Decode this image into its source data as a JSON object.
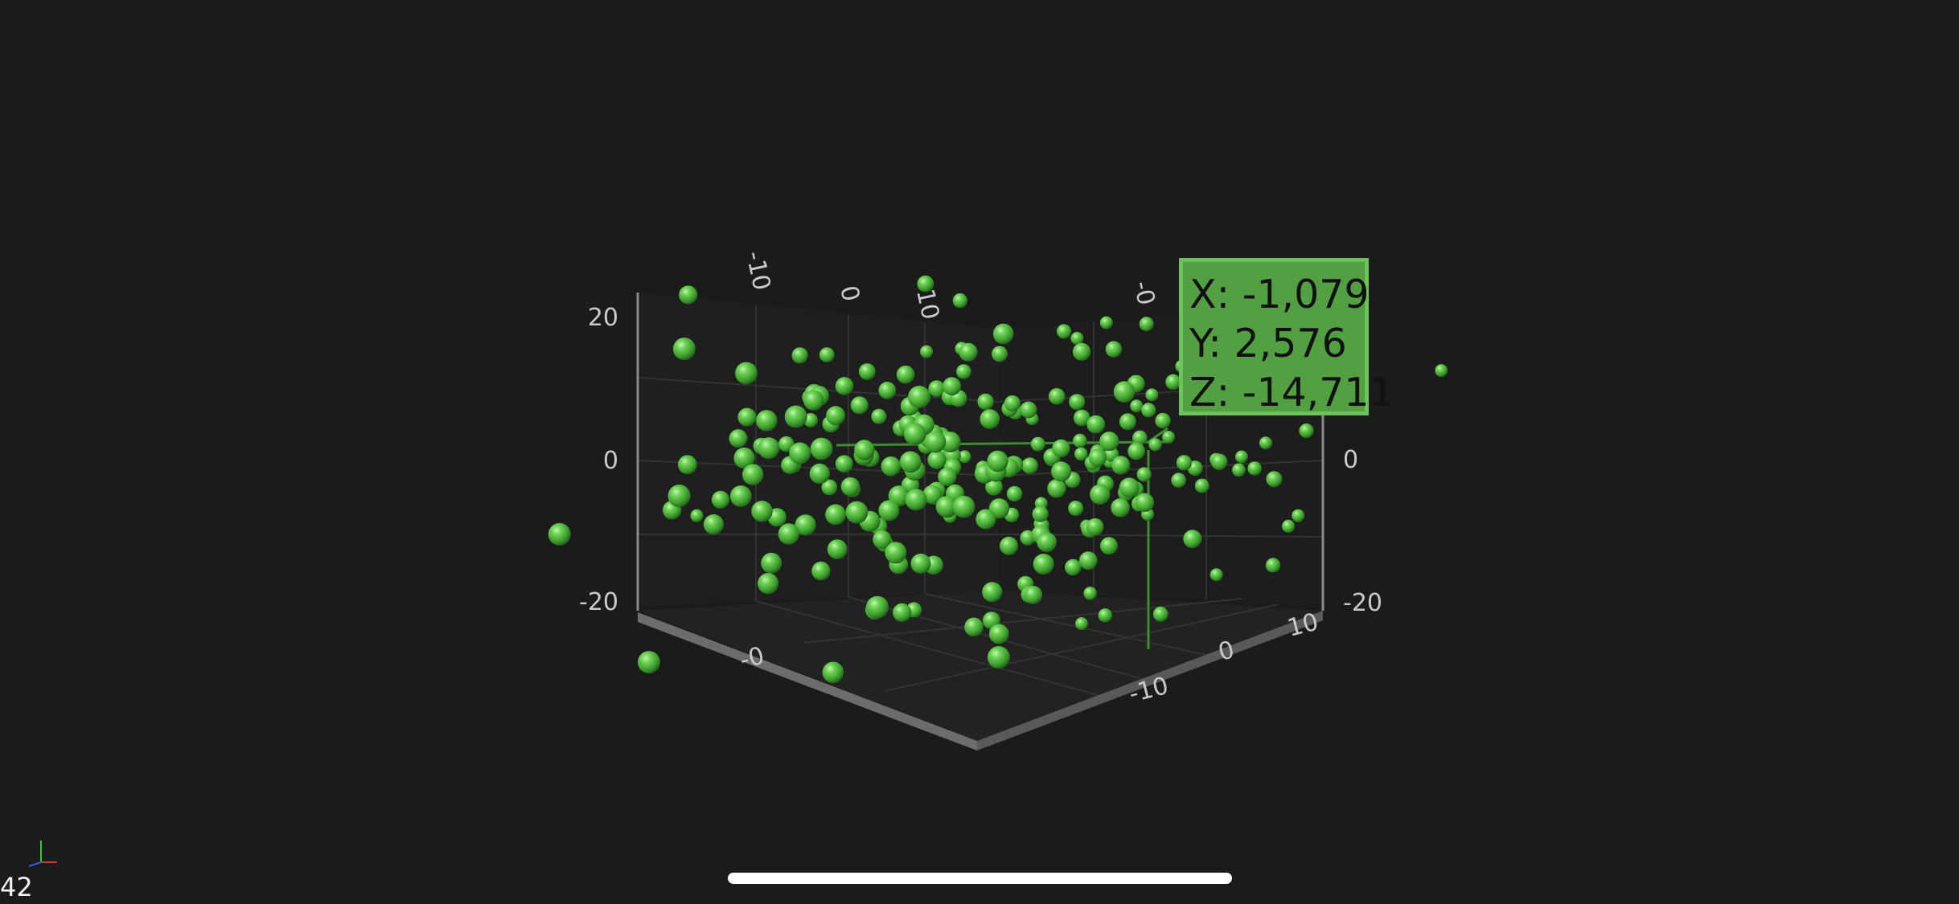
{
  "chart_data": {
    "type": "scatter",
    "title": "",
    "xlabel": "",
    "ylabel": "",
    "zlabel": "",
    "y_ticks": [
      "20",
      "0",
      "-20"
    ],
    "y_ticks_right": [
      "0",
      "-20"
    ],
    "x_ticks_top": [
      "-10",
      "0",
      "10"
    ],
    "x_ticks_floor": [
      "-0"
    ],
    "z_ticks_top": [
      "-0"
    ],
    "z_ticks_floor": [
      "10",
      "0",
      "-10"
    ],
    "ylim": [
      -20,
      20
    ],
    "selected_point": {
      "x": -1.079,
      "y": 2.576,
      "z": -14.711
    },
    "color": "#5cc346",
    "point_count_estimate": 240,
    "grid": true
  },
  "tooltip": {
    "x_text": "X: -1,079",
    "y_text": "Y: 2,576",
    "z_text": "Z: -14,711"
  },
  "overlay": {
    "fps": "42"
  },
  "colors": {
    "background": "#1b1b1b",
    "accent": "#5cc346",
    "tooltip_bg": "#52a042",
    "tooltip_border": "#6cc25b",
    "axis": "#8a8a8a"
  }
}
